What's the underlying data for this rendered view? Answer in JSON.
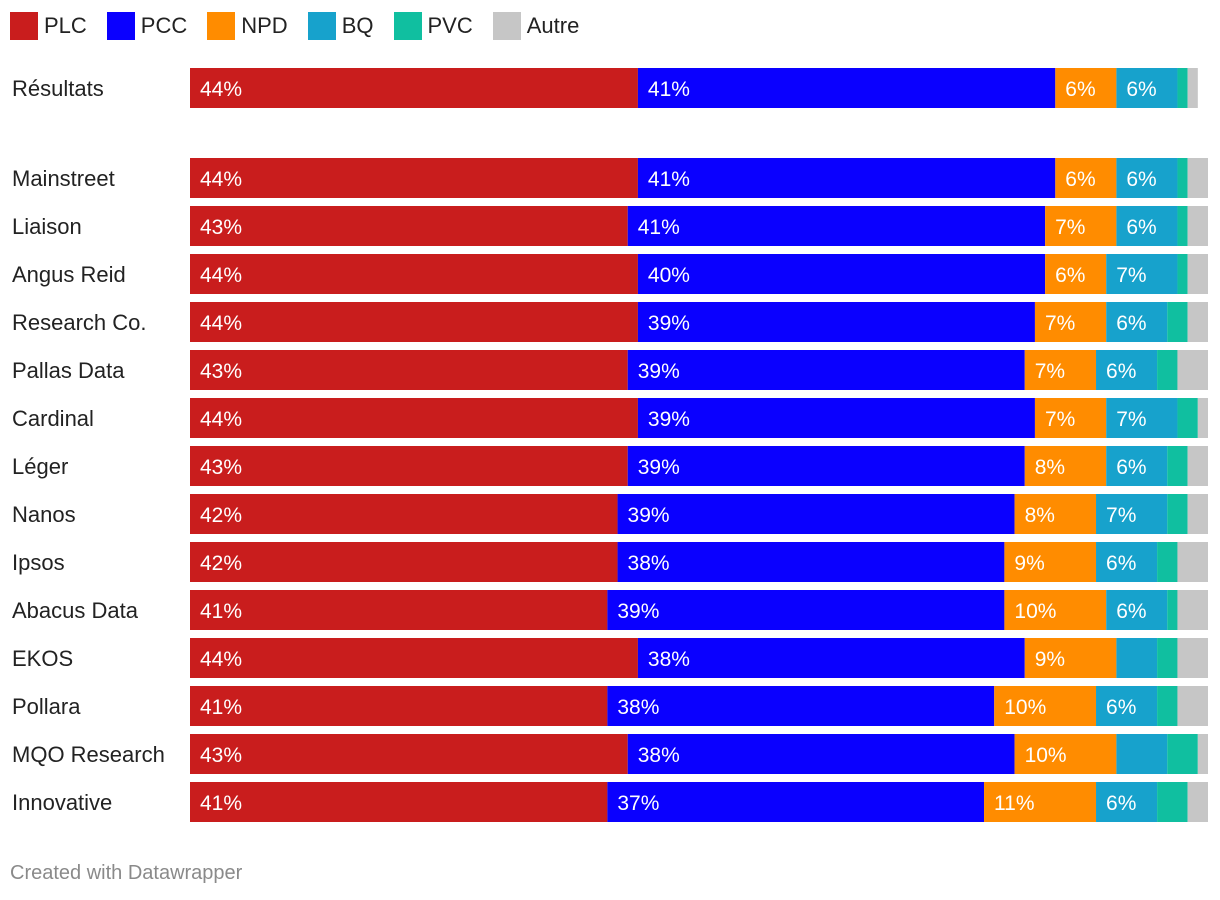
{
  "chart_data": {
    "type": "bar",
    "orientation": "horizontal",
    "stacked": true,
    "series": [
      {
        "name": "PLC",
        "color": "#c91d1d",
        "values": [
          44,
          44,
          43,
          44,
          44,
          43,
          44,
          43,
          42,
          42,
          41,
          44,
          41,
          43,
          41
        ],
        "labels": [
          "44%",
          "44%",
          "43%",
          "44%",
          "44%",
          "43%",
          "44%",
          "43%",
          "42%",
          "42%",
          "41%",
          "44%",
          "41%",
          "43%",
          "41%"
        ]
      },
      {
        "name": "PCC",
        "color": "#0a00ff",
        "values": [
          41,
          41,
          41,
          40,
          39,
          39,
          39,
          39,
          39,
          38,
          39,
          38,
          38,
          38,
          37
        ],
        "labels": [
          "41%",
          "41%",
          "41%",
          "40%",
          "39%",
          "39%",
          "39%",
          "39%",
          "39%",
          "38%",
          "39%",
          "38%",
          "38%",
          "38%",
          "37%"
        ]
      },
      {
        "name": "NPD",
        "color": "#ff8c00",
        "values": [
          6,
          6,
          7,
          6,
          7,
          7,
          7,
          8,
          8,
          9,
          10,
          9,
          10,
          10,
          11
        ],
        "labels": [
          "6%",
          "6%",
          "7%",
          "6%",
          "7%",
          "7%",
          "7%",
          "8%",
          "8%",
          "9%",
          "10%",
          "9%",
          "10%",
          "10%",
          "11%"
        ]
      },
      {
        "name": "BQ",
        "color": "#17a2cc",
        "values": [
          6,
          6,
          6,
          7,
          6,
          6,
          7,
          6,
          7,
          6,
          6,
          4,
          6,
          5,
          6
        ],
        "labels": [
          "6%",
          "6%",
          "6%",
          "7%",
          "6%",
          "6%",
          "7%",
          "6%",
          "7%",
          "6%",
          "6%",
          "",
          "6%",
          "",
          "6%"
        ]
      },
      {
        "name": "PVC",
        "color": "#10bfa0",
        "values": [
          1,
          1,
          1,
          1,
          2,
          2,
          2,
          2,
          2,
          2,
          1,
          2,
          2,
          3,
          3
        ],
        "labels": [
          "",
          "",
          "",
          "",
          "",
          "",
          "",
          "",
          "",
          "",
          "",
          "",
          "",
          "",
          ""
        ]
      },
      {
        "name": "Autre",
        "color": "#c6c6c6",
        "values": [
          1,
          2,
          2,
          2,
          2,
          3,
          1,
          2,
          2,
          3,
          3,
          3,
          3,
          1,
          2
        ],
        "labels": [
          "",
          "",
          "",
          "",
          "",
          "",
          "",
          "",
          "",
          "",
          "",
          "",
          "",
          "",
          ""
        ]
      }
    ],
    "label_colors": {
      "PLC": "#ffffff",
      "PCC": "#ffffff",
      "NPD": "#ffffff",
      "BQ": "#ffffff"
    },
    "categories": [
      "Résultats",
      "Mainstreet",
      "Liaison",
      "Angus Reid",
      "Research Co.",
      "Pallas Data",
      "Cardinal",
      "Léger",
      "Nanos",
      "Ipsos",
      "Abacus Data",
      "EKOS",
      "Pollara",
      "MQO Research",
      "Innovative"
    ],
    "x_range": [
      0,
      100
    ],
    "legend_position": "top-left",
    "grid": false,
    "footer": "Created with Datawrapper"
  }
}
